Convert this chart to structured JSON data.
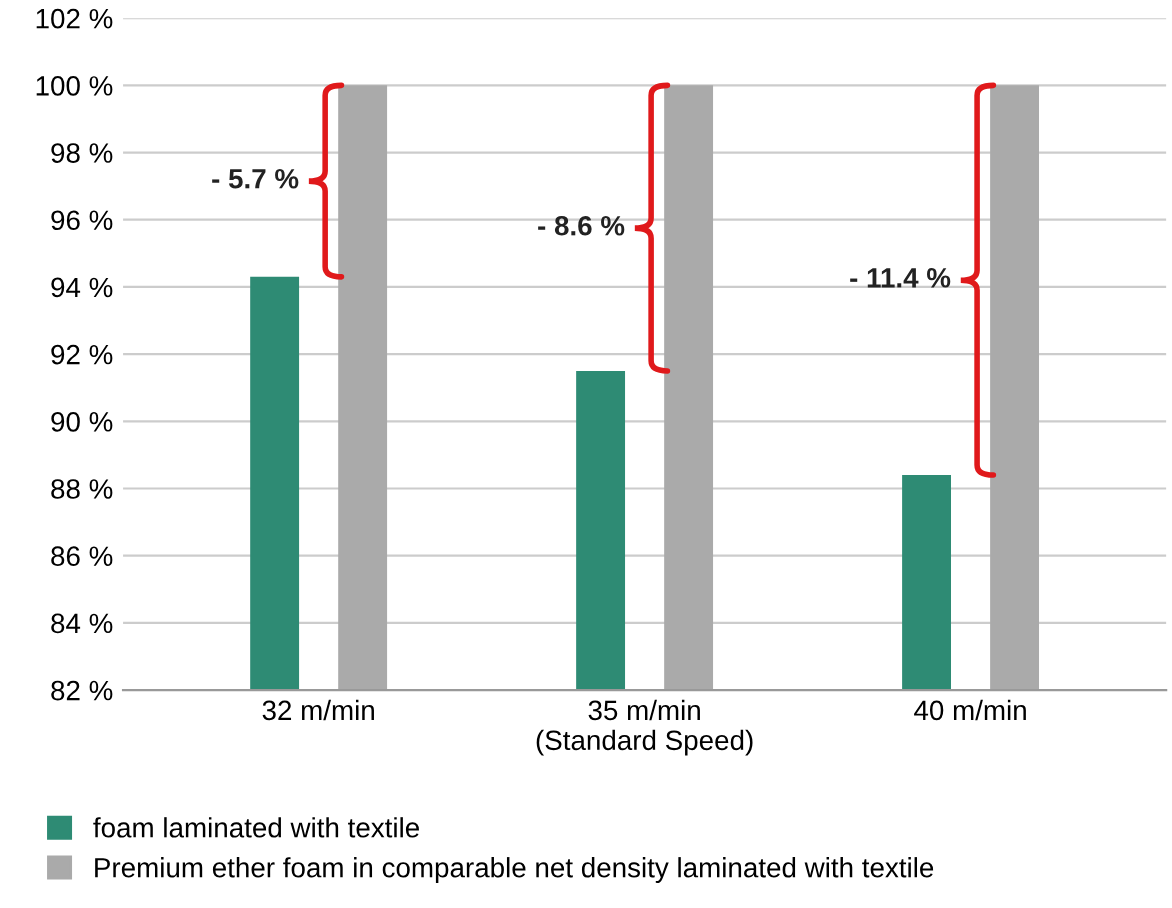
{
  "chart_data": {
    "type": "bar",
    "categories": [
      "32 m/min",
      "35 m/min\n(Standard Speed)",
      "40 m/min"
    ],
    "series": [
      {
        "name": "foam laminated with textile",
        "color": "#2e8b74",
        "values": [
          94.3,
          91.5,
          88.4
        ]
      },
      {
        "name": "Premium ether foam in comparable net density laminated with textile",
        "color": "#aaaaaa",
        "values": [
          100,
          100,
          100
        ]
      }
    ],
    "ylim": [
      82,
      102
    ],
    "yticks": [
      {
        "value": 82,
        "label": "82 %"
      },
      {
        "value": 84,
        "label": "84 %"
      },
      {
        "value": 86,
        "label": "86 %"
      },
      {
        "value": 88,
        "label": "88 %"
      },
      {
        "value": 90,
        "label": "90 %"
      },
      {
        "value": 92,
        "label": "92 %"
      },
      {
        "value": 94,
        "label": "94 %"
      },
      {
        "value": 96,
        "label": "96 %"
      },
      {
        "value": 98,
        "label": "98 %"
      },
      {
        "value": 100,
        "label": "100 %"
      },
      {
        "value": 102,
        "label": "102 %"
      }
    ],
    "annotations": [
      "- 5.7 %",
      "- 8.6 %",
      "- 11.4 %"
    ],
    "grid": "y",
    "legend": "bottom"
  }
}
